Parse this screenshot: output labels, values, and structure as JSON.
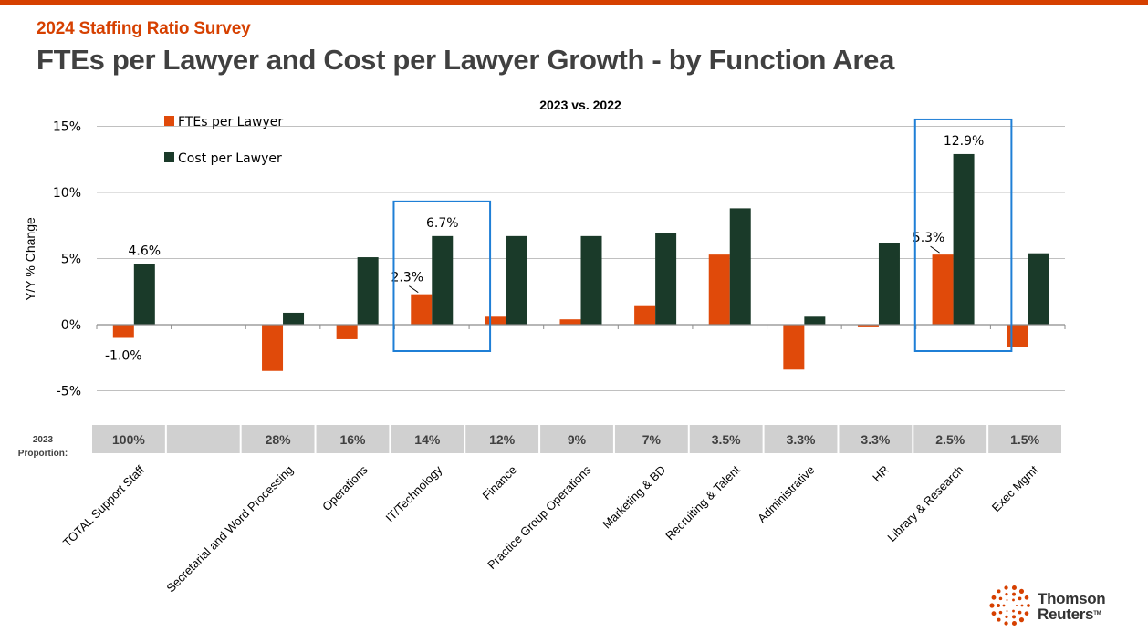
{
  "header": {
    "kicker": "2024 Staffing Ratio Survey",
    "title": "FTEs per Lawyer and Cost per Lawyer Growth - by Function Area"
  },
  "brand": {
    "line1": "Thomson",
    "line2": "Reuters",
    "tm": "TM"
  },
  "colors": {
    "accent": "#d64000",
    "fte": "#e04a0a",
    "cost": "#1a3a29",
    "highlight": "#1f7fd6",
    "grid": "#c0c0c0",
    "proportion_cell": "#d0d0d0"
  },
  "chart_data": {
    "type": "bar",
    "title": "2023 vs. 2022",
    "xlabel": "",
    "ylabel": "Y/Y % Change",
    "ylim": [
      -0.07,
      0.15
    ],
    "yticks": [
      15,
      10,
      5,
      0,
      -5
    ],
    "ytick_labels": [
      "15%",
      "10%",
      "5%",
      "0%",
      "-5%"
    ],
    "grid": true,
    "legend_position": "top-left",
    "categories": [
      "TOTAL Support Staff",
      "",
      "Secretarial and Word Processing",
      "Operations",
      "IT/Technology",
      "Finance",
      "Practice Group Operations",
      "Marketing & BD",
      "Recruiting & Talent",
      "Administrative",
      "HR",
      "Library & Research",
      "Exec Mgmt"
    ],
    "series": [
      {
        "name": "FTEs per Lawyer",
        "color": "#e04a0a",
        "values": [
          -1.0,
          null,
          -3.5,
          -1.1,
          2.3,
          0.6,
          0.4,
          1.4,
          5.3,
          -3.4,
          -0.2,
          5.3,
          -1.7
        ]
      },
      {
        "name": "Cost per Lawyer",
        "color": "#1a3a29",
        "values": [
          4.6,
          null,
          0.9,
          5.1,
          6.7,
          6.7,
          6.7,
          6.9,
          8.8,
          0.6,
          6.2,
          12.9,
          5.4
        ]
      }
    ],
    "data_labels": [
      {
        "category_index": 0,
        "series": 0,
        "text": "-1.0%"
      },
      {
        "category_index": 0,
        "series": 1,
        "text": "4.6%"
      },
      {
        "category_index": 4,
        "series": 0,
        "text": "2.3%"
      },
      {
        "category_index": 4,
        "series": 1,
        "text": "6.7%"
      },
      {
        "category_index": 11,
        "series": 0,
        "text": "5.3%"
      },
      {
        "category_index": 11,
        "series": 1,
        "text": "12.9%"
      }
    ],
    "highlighted_categories": [
      4,
      11
    ],
    "proportion_row": {
      "label_line1": "2023",
      "label_line2": "Proportion:",
      "values": [
        "100%",
        "",
        "28%",
        "16%",
        "14%",
        "12%",
        "9%",
        "7%",
        "3.5%",
        "3.3%",
        "3.3%",
        "2.5%",
        "1.5%"
      ]
    }
  }
}
